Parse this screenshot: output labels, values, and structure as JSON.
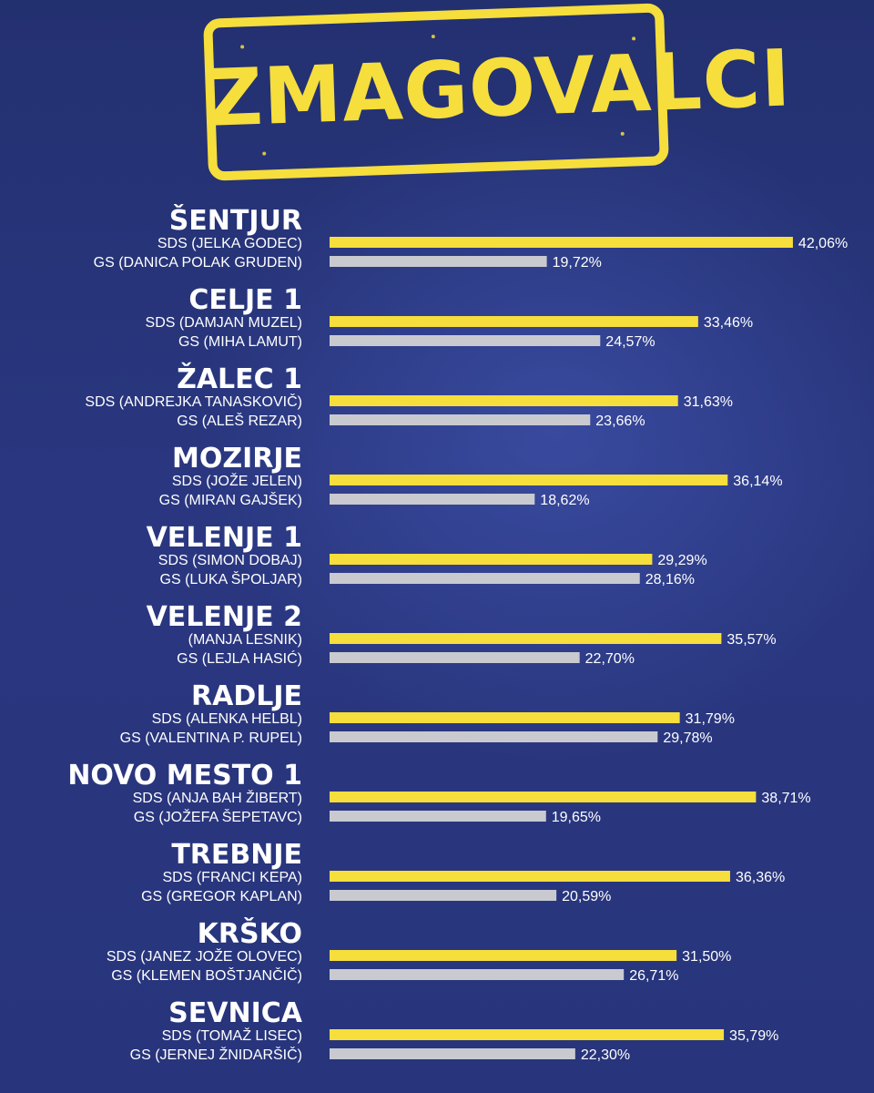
{
  "title": "ZMAGOVALCI",
  "colors": {
    "sds_bar": "#f6de3c",
    "gs_bar": "#c9cad0",
    "background": "#28357c",
    "text": "#ffffff"
  },
  "chart_data": {
    "type": "bar",
    "orientation": "horizontal",
    "value_format": "percent_comma_decimal",
    "xlim": [
      0,
      45
    ],
    "grid": false,
    "groups": [
      {
        "name": "ŠENTJUR",
        "entries": [
          {
            "label": "SDS (JELKA GODEC)",
            "value": 42.06,
            "value_label": "42,06%",
            "party": "SDS"
          },
          {
            "label": "GS (DANICA POLAK GRUDEN)",
            "value": 19.72,
            "value_label": "19,72%",
            "party": "GS"
          }
        ]
      },
      {
        "name": "CELJE 1",
        "entries": [
          {
            "label": "SDS (DAMJAN MUZEL)",
            "value": 33.46,
            "value_label": "33,46%",
            "party": "SDS"
          },
          {
            "label": "GS (MIHA LAMUT)",
            "value": 24.57,
            "value_label": "24,57%",
            "party": "GS"
          }
        ]
      },
      {
        "name": "ŽALEC 1",
        "entries": [
          {
            "label": "SDS (ANDREJKA TANASKOVIČ)",
            "value": 31.63,
            "value_label": "31,63%",
            "party": "SDS"
          },
          {
            "label": "GS (ALEŠ REZAR)",
            "value": 23.66,
            "value_label": "23,66%",
            "party": "GS"
          }
        ]
      },
      {
        "name": "MOZIRJE",
        "entries": [
          {
            "label": "SDS (JOŽE JELEN)",
            "value": 36.14,
            "value_label": "36,14%",
            "party": "SDS"
          },
          {
            "label": "GS (MIRAN GAJŠEK)",
            "value": 18.62,
            "value_label": "18,62%",
            "party": "GS"
          }
        ]
      },
      {
        "name": "VELENJE 1",
        "entries": [
          {
            "label": "SDS (SIMON DOBAJ)",
            "value": 29.29,
            "value_label": "29,29%",
            "party": "SDS"
          },
          {
            "label": "GS (LUKA ŠPOLJAR)",
            "value": 28.16,
            "value_label": "28,16%",
            "party": "GS"
          }
        ]
      },
      {
        "name": "VELENJE 2",
        "entries": [
          {
            "label": "(MANJA LESNIK)",
            "value": 35.57,
            "value_label": "35,57%",
            "party": "SDS"
          },
          {
            "label": "GS (LEJLA HASIĆ)",
            "value": 22.7,
            "value_label": "22,70%",
            "party": "GS"
          }
        ]
      },
      {
        "name": "RADLJE",
        "entries": [
          {
            "label": "SDS (ALENKA HELBL)",
            "value": 31.79,
            "value_label": "31,79%",
            "party": "SDS"
          },
          {
            "label": "GS (VALENTINA P. RUPEL)",
            "value": 29.78,
            "value_label": "29,78%",
            "party": "GS"
          }
        ]
      },
      {
        "name": "NOVO MESTO 1",
        "entries": [
          {
            "label": "SDS (ANJA BAH ŽIBERT)",
            "value": 38.71,
            "value_label": "38,71%",
            "party": "SDS"
          },
          {
            "label": "GS (JOŽEFA ŠEPETAVC)",
            "value": 19.65,
            "value_label": "19,65%",
            "party": "GS"
          }
        ]
      },
      {
        "name": "TREBNJE",
        "entries": [
          {
            "label": "SDS (FRANCI KEPA)",
            "value": 36.36,
            "value_label": "36,36%",
            "party": "SDS"
          },
          {
            "label": "GS (GREGOR KAPLAN)",
            "value": 20.59,
            "value_label": "20,59%",
            "party": "GS"
          }
        ]
      },
      {
        "name": "KRŠKO",
        "entries": [
          {
            "label": "SDS (JANEZ JOŽE OLOVEC)",
            "value": 31.5,
            "value_label": "31,50%",
            "party": "SDS"
          },
          {
            "label": "GS (KLEMEN BOŠTJANČIČ)",
            "value": 26.71,
            "value_label": "26,71%",
            "party": "GS"
          }
        ]
      },
      {
        "name": "SEVNICA",
        "entries": [
          {
            "label": "SDS (TOMAŽ LISEC)",
            "value": 35.79,
            "value_label": "35,79%",
            "party": "SDS"
          },
          {
            "label": "GS (JERNEJ ŽNIDARŠIČ)",
            "value": 22.3,
            "value_label": "22,30%",
            "party": "GS"
          }
        ]
      }
    ]
  }
}
